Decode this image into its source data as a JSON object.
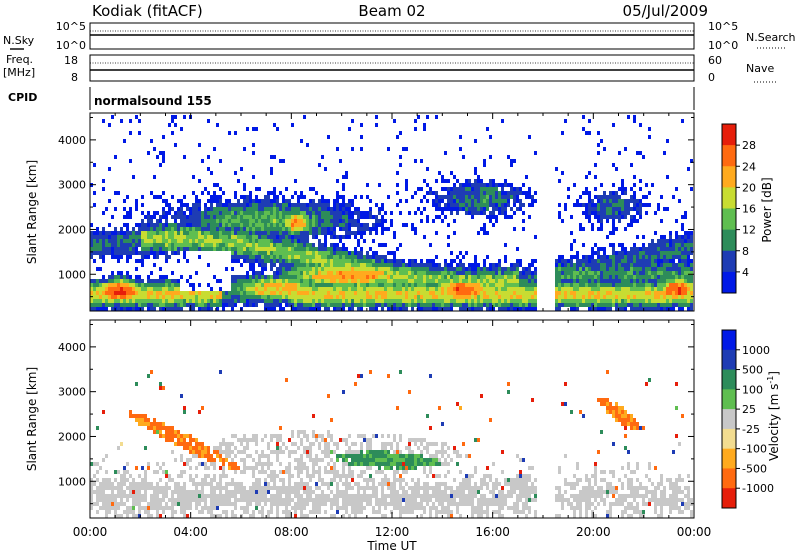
{
  "header": {
    "station": "Kodiak  (fitACF)",
    "beam": "Beam 02",
    "date": "05/Jul/2009"
  },
  "noise_panel": {
    "left_label": "N.Sky",
    "right_label": "N.Search",
    "left_ticks": [
      "10^5",
      "10^0"
    ],
    "right_ticks": [
      "10^5",
      "10^0"
    ]
  },
  "freq_panel": {
    "left_label_1": "Freq.",
    "left_label_2": "[MHz]",
    "right_label": "Nave",
    "left_ticks": [
      "18",
      "8"
    ],
    "right_ticks": [
      "60",
      "0"
    ]
  },
  "cpid_panel": {
    "label": "CPID",
    "program": "normalsound 155"
  },
  "power_panel": {
    "ylabel": "Slant Range [km]",
    "yticks": [
      "4000",
      "3000",
      "2000",
      "1000"
    ],
    "colorbar_title": "Power [dB]",
    "colorbar_ticks": [
      "28",
      "24",
      "20",
      "16",
      "12",
      "8",
      "4"
    ]
  },
  "velocity_panel": {
    "ylabel": "Slant Range [km]",
    "yticks": [
      "4000",
      "3000",
      "2000",
      "1000"
    ],
    "colorbar_title": "Velocity  [m s",
    "colorbar_exp": "-1",
    "colorbar_close": "]",
    "colorbar_ticks": [
      "1000",
      "500",
      "100",
      "25",
      "-25",
      "-100",
      "-500",
      "-1000"
    ]
  },
  "x_axis": {
    "ticks": [
      "00:00",
      "04:00",
      "08:00",
      "12:00",
      "16:00",
      "20:00",
      "00:00"
    ],
    "label": "Time UT"
  },
  "chart_data": [
    {
      "type": "heatmap",
      "name": "power",
      "xlabel": "Time UT",
      "ylabel": "Slant Range [km]",
      "xlim_hours": [
        0,
        24
      ],
      "ylim": [
        180,
        4600
      ],
      "colorbar_label": "Power [dB]",
      "colorbar_ticks": [
        4,
        8,
        12,
        16,
        20,
        24,
        28
      ],
      "colors": [
        "#0019e6",
        "#1e3cb4",
        "#2d8c5a",
        "#5fbe50",
        "#c8dc32",
        "#ffaa1e",
        "#ff6a10",
        "#e61e0a"
      ],
      "data_gap_hours": [
        17.75,
        18.5
      ],
      "regions": [
        {
          "t0": 0.5,
          "t1": 1.9,
          "r0": 420,
          "r1": 820,
          "peak_db": 28
        },
        {
          "t0": 6.0,
          "t1": 9.0,
          "r0": 450,
          "r1": 900,
          "peak_db": 20
        },
        {
          "t0": 8.4,
          "t1": 12.4,
          "r0": 750,
          "r1": 1200,
          "peak_db": 22
        },
        {
          "t0": 7.7,
          "t1": 8.7,
          "r0": 1950,
          "r1": 2350,
          "peak_db": 22
        },
        {
          "t0": 14.0,
          "t1": 15.7,
          "r0": 450,
          "r1": 850,
          "peak_db": 26
        },
        {
          "t0": 22.7,
          "t1": 24.0,
          "r0": 450,
          "r1": 850,
          "peak_db": 26
        }
      ]
    },
    {
      "type": "heatmap",
      "name": "velocity",
      "xlabel": "Time UT",
      "ylabel": "Slant Range [km]",
      "xlim_hours": [
        0,
        24
      ],
      "ylim": [
        180,
        4600
      ],
      "colorbar_label": "Velocity [m s-1]",
      "colorbar_ticks": [
        -1000,
        -500,
        -100,
        -25,
        25,
        100,
        500,
        1000
      ],
      "colors": [
        "#e61e0a",
        "#ff6a10",
        "#ffaa1e",
        "#f2dc90",
        "#c8c8c8",
        "#5fbe50",
        "#2d8c5a",
        "#1e3cb4",
        "#0019e6"
      ],
      "data_gap_hours": [
        17.75,
        18.5
      ],
      "features": [
        {
          "desc_level": "-100",
          "t0": 2.3,
          "t1": 5.2,
          "r0": 1500,
          "r1": 2300
        },
        {
          "desc_level": "100",
          "t0": 10.5,
          "t1": 13.2,
          "r0": 1200,
          "r1": 1500
        },
        {
          "desc_level": "-100",
          "t0": 20.5,
          "t1": 21.6,
          "r0": 2300,
          "r1": 2700
        }
      ]
    }
  ]
}
